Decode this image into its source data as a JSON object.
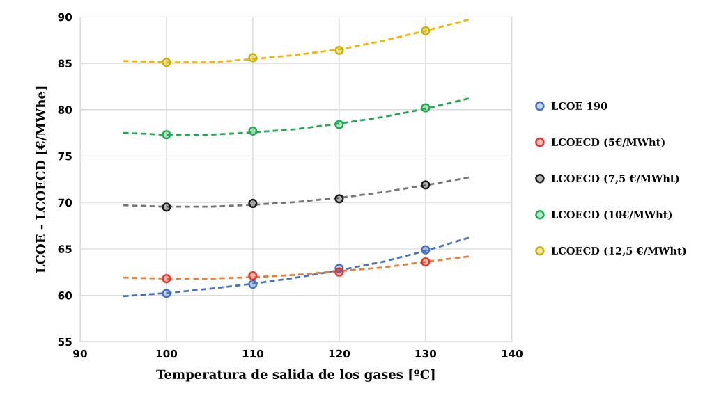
{
  "chart_data": {
    "type": "scatter",
    "xlabel": "Temperatura de salida de los gases [ºC]",
    "ylabel": "LCOE - LCOECD [€/MWhe]",
    "xlim": [
      90,
      140
    ],
    "xticks": [
      90,
      100,
      110,
      120,
      130,
      140
    ],
    "ylim": [
      55,
      90
    ],
    "yticks": [
      55,
      60,
      65,
      70,
      75,
      80,
      85,
      90
    ],
    "grid": true,
    "legend": "right",
    "marker": "circle",
    "series": [
      {
        "type": "line",
        "line_style": "dashed",
        "marker": "none",
        "color": "#4472c4",
        "x": [
          95,
          100,
          105,
          110,
          115,
          120,
          125,
          130,
          135
        ],
        "values": [
          59.9,
          60.25,
          60.7,
          61.25,
          61.9,
          62.7,
          63.6,
          64.8,
          66.2
        ]
      },
      {
        "type": "line",
        "line_style": "dashed",
        "marker": "none",
        "color": "#ed7d31",
        "x": [
          95,
          100,
          105,
          110,
          115,
          120,
          125,
          130,
          135
        ],
        "values": [
          61.9,
          61.8,
          61.8,
          61.95,
          62.2,
          62.6,
          63.0,
          63.6,
          64.2
        ]
      },
      {
        "type": "line",
        "line_style": "dashed",
        "marker": "none",
        "color": "#767676",
        "x": [
          95,
          100,
          105,
          110,
          115,
          120,
          125,
          130,
          135
        ],
        "values": [
          69.7,
          69.55,
          69.55,
          69.75,
          70.05,
          70.5,
          71.1,
          71.85,
          72.7
        ]
      },
      {
        "type": "line",
        "line_style": "dashed",
        "marker": "none",
        "color": "#1faa50",
        "x": [
          95,
          100,
          105,
          110,
          115,
          120,
          125,
          130,
          135
        ],
        "values": [
          77.5,
          77.3,
          77.3,
          77.55,
          77.9,
          78.5,
          79.2,
          80.1,
          81.2
        ]
      },
      {
        "type": "line",
        "line_style": "dashed",
        "marker": "none",
        "color": "#f5b400",
        "x": [
          95,
          100,
          105,
          110,
          115,
          120,
          125,
          130,
          135
        ],
        "values": [
          85.25,
          85.1,
          85.1,
          85.45,
          85.9,
          86.5,
          87.4,
          88.5,
          89.7
        ]
      },
      {
        "name": "LCOE 190",
        "color": "#4472c4",
        "x": [
          100,
          110,
          120,
          130
        ],
        "values": [
          60.2,
          61.2,
          62.9,
          64.9
        ]
      },
      {
        "name": "LCOECD (5€/MWht)",
        "color": "#e8322a",
        "x": [
          100,
          110,
          120,
          130
        ],
        "values": [
          61.8,
          62.1,
          62.5,
          63.6
        ]
      },
      {
        "name": "LCOECD (7,5 €/MWht)",
        "color": "#1a1a1a",
        "x": [
          100,
          110,
          120,
          130
        ],
        "values": [
          69.5,
          69.9,
          70.4,
          71.9
        ]
      },
      {
        "name": "LCOECD (10€/MWht)",
        "color": "#1faa50",
        "x": [
          100,
          110,
          120,
          130
        ],
        "values": [
          77.3,
          77.7,
          78.4,
          80.2
        ]
      },
      {
        "name": "LCOECD (12,5 €/MWht)",
        "color": "#c8b400",
        "x": [
          100,
          110,
          120,
          130
        ],
        "values": [
          85.1,
          85.6,
          86.4,
          88.5
        ]
      }
    ]
  }
}
